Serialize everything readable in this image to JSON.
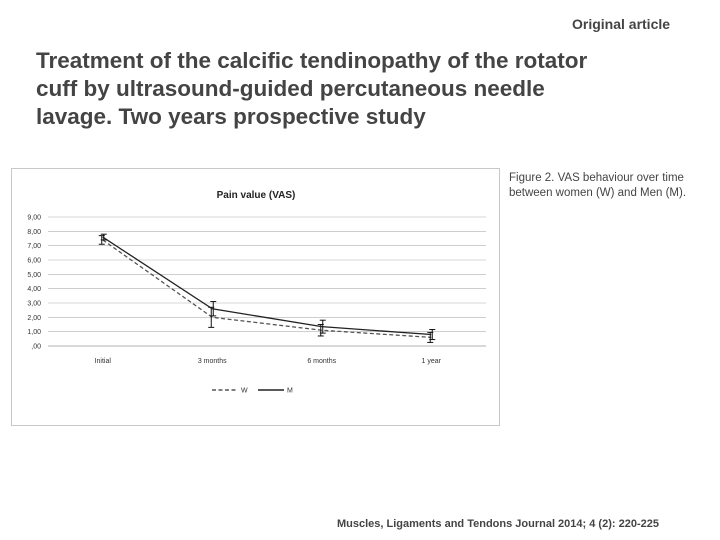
{
  "header": {
    "label": "Original article"
  },
  "title": {
    "line1": "Treatment of the calcific tendinopathy of the rotator",
    "line2": "cuff by ultrasound-guided percutaneous needle",
    "line3": "lavage. Two years prospective study"
  },
  "caption": {
    "line1": "Figure 2. VAS behaviour over time",
    "line2": "between women (W) and Men (M)."
  },
  "footer": {
    "citation": "Muscles, Ligaments and Tendons Journal 2014; 4 (2): 220-225"
  },
  "colors": {
    "text": "#444444",
    "grid": "#b0b0b0",
    "series_w": "#555555",
    "series_m": "#222222"
  },
  "chart_data": {
    "type": "line",
    "title": "Pain value (VAS)",
    "categories": [
      "Initial",
      "3 months",
      "6 months",
      "1 year"
    ],
    "ytick_labels": [
      ",00",
      "1,00",
      "2,00",
      "3,00",
      "4,00",
      "5,00",
      "6,00",
      "7,00",
      "8,00",
      "9,00"
    ],
    "ylim": [
      0,
      9
    ],
    "grid": true,
    "legend_position": "bottom",
    "series": [
      {
        "name": "W",
        "style": "dashed",
        "values": [
          7.4,
          2.0,
          1.1,
          0.6
        ],
        "error": [
          0.3,
          0.7,
          0.4,
          0.35
        ]
      },
      {
        "name": "M",
        "style": "solid",
        "values": [
          7.6,
          2.6,
          1.35,
          0.8
        ],
        "error": [
          0.2,
          0.5,
          0.45,
          0.35
        ]
      }
    ]
  }
}
